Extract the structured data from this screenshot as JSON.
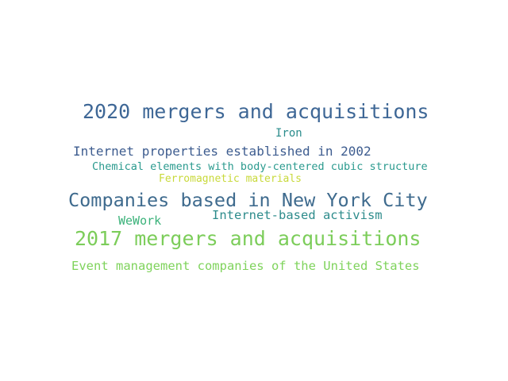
{
  "word_cloud": {
    "words": [
      {
        "text": "2020 mergers and acquisitions",
        "color": "#3e6796"
      },
      {
        "text": "Iron",
        "color": "#2a8c8c"
      },
      {
        "text": "Internet properties established in 2002",
        "color": "#3d5c8f"
      },
      {
        "text": "Chemical elements with body-centered cubic structure",
        "color": "#2a9a8e"
      },
      {
        "text": "Ferromagnetic materials",
        "color": "#c8d93a"
      },
      {
        "text": "Companies based in New York City",
        "color": "#3f6b8e"
      },
      {
        "text": "Internet-based activism",
        "color": "#2e8c8c"
      },
      {
        "text": "WeWork",
        "color": "#3bb27a"
      },
      {
        "text": "2017 mergers and acquisitions",
        "color": "#7ccd5a"
      },
      {
        "text": "Event management companies of the United States",
        "color": "#7fd35c"
      }
    ]
  }
}
